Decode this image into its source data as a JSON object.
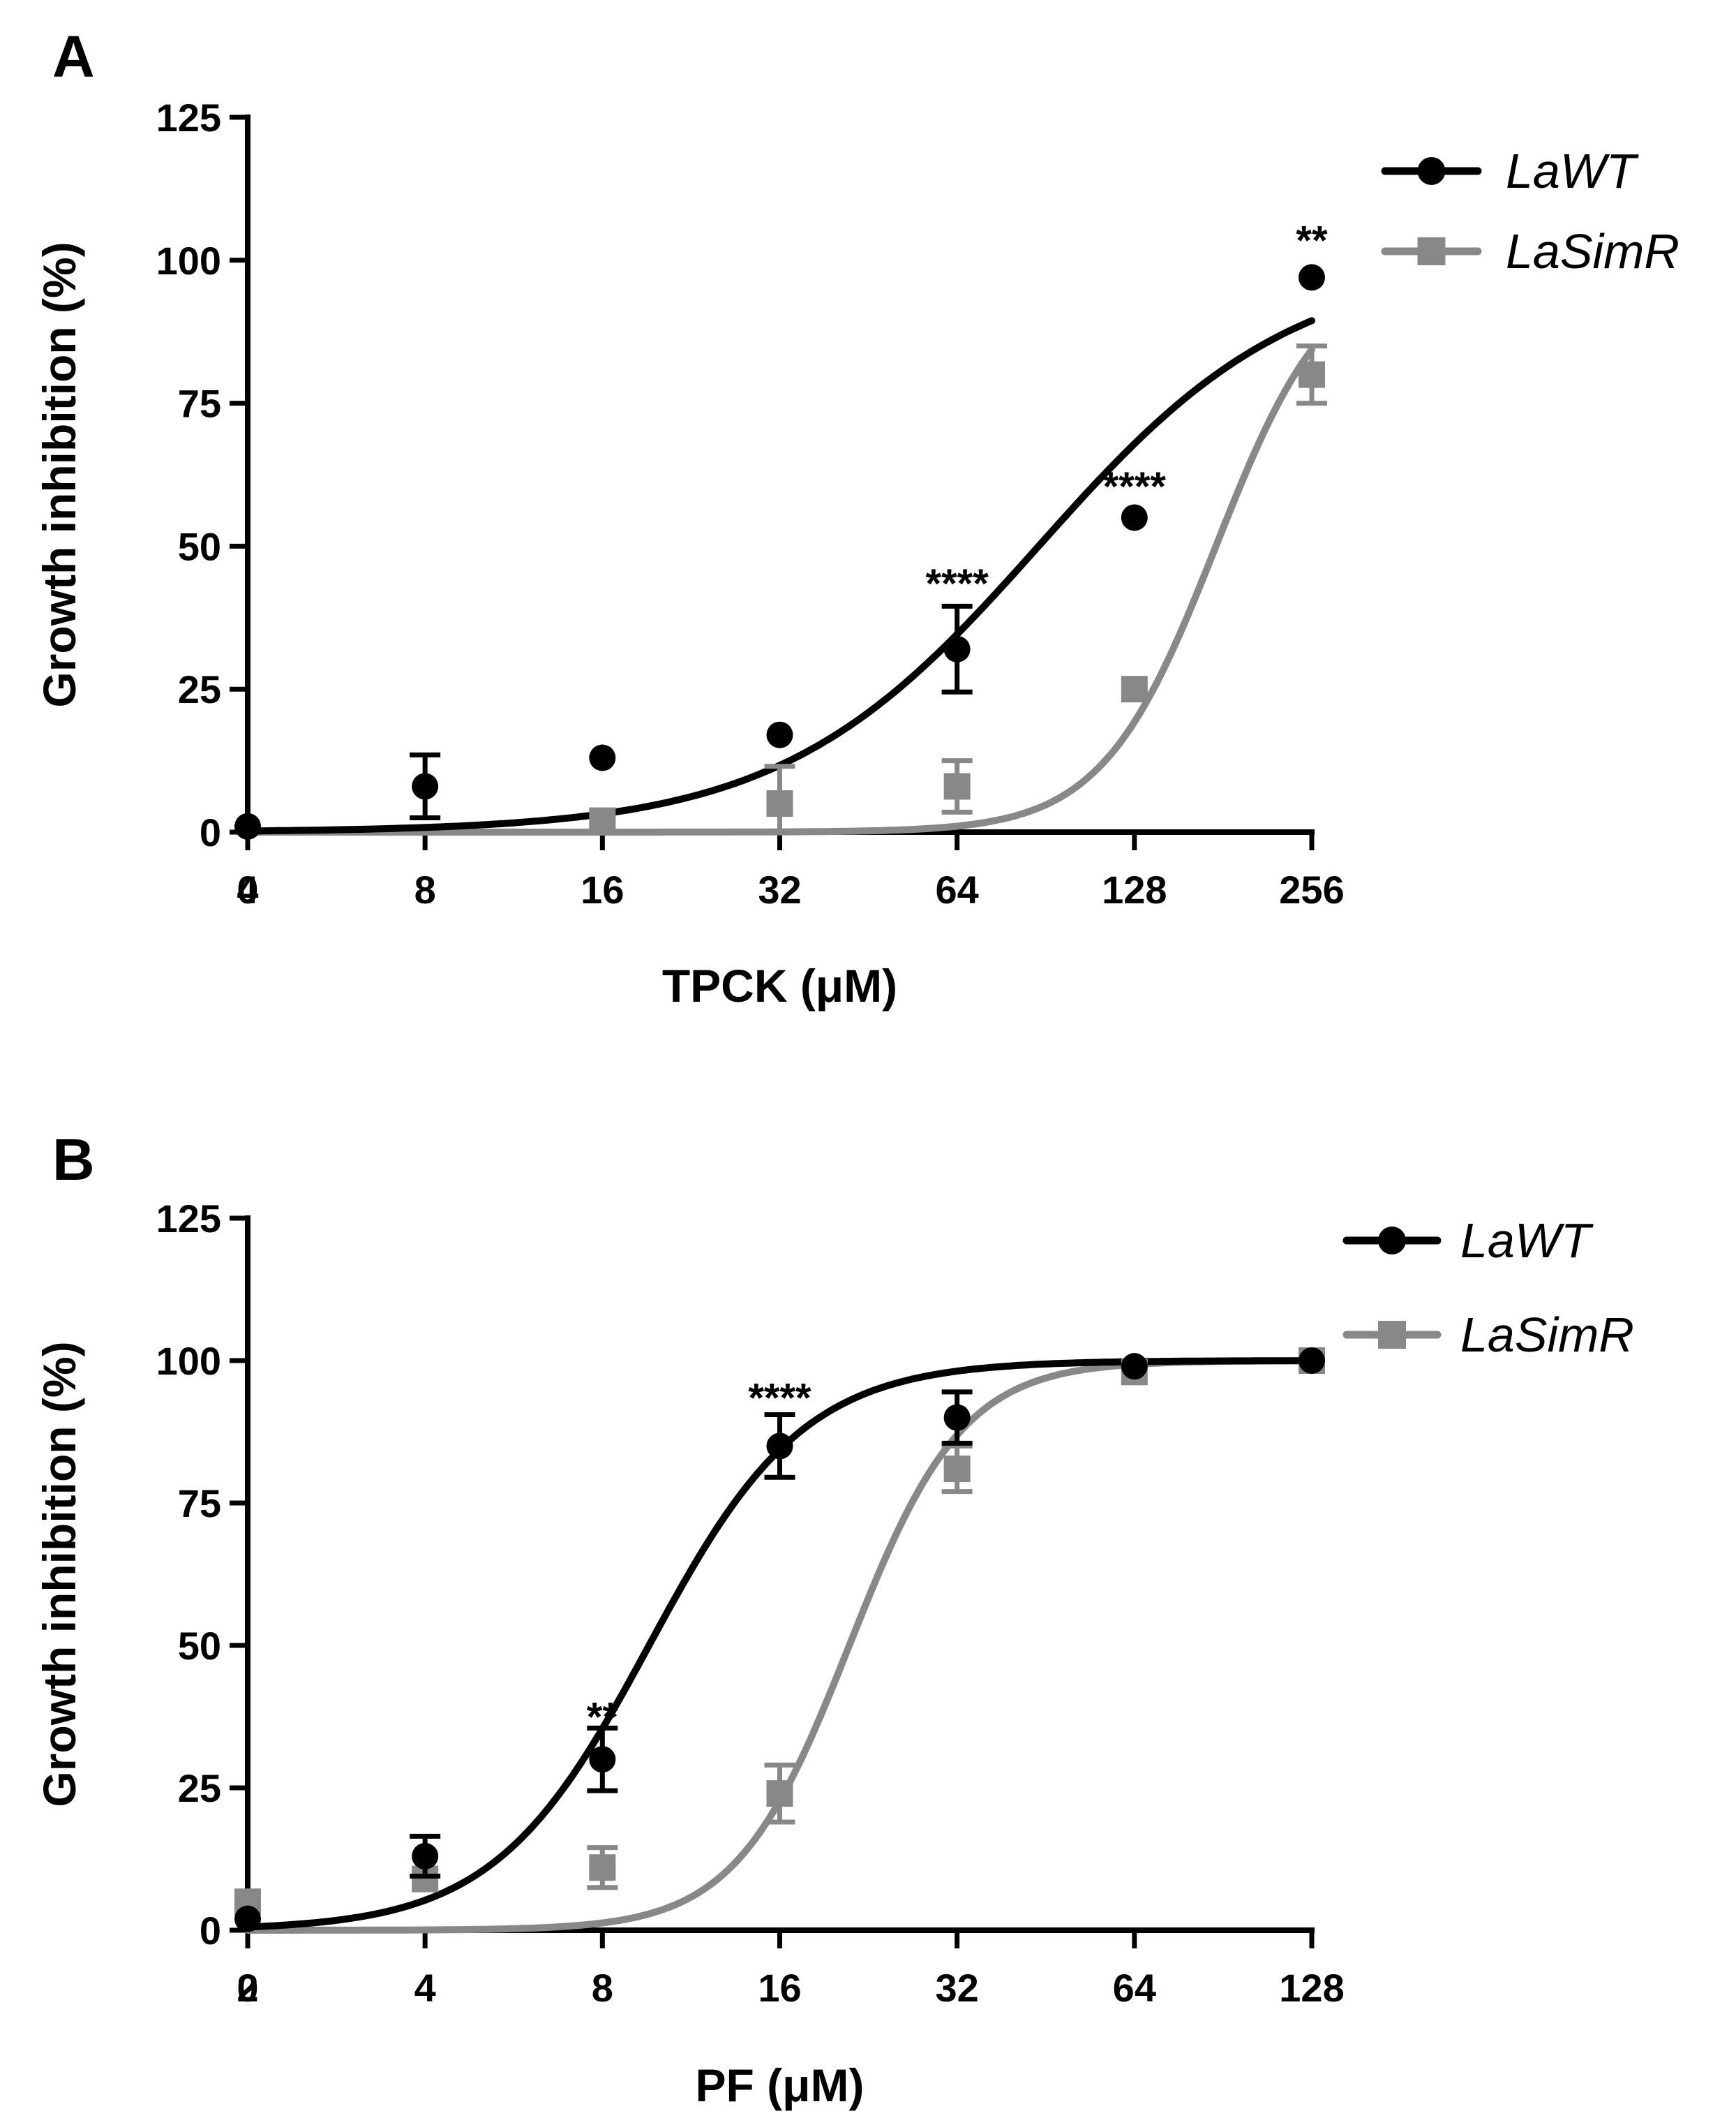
{
  "chart_data": [
    {
      "panel": "A",
      "type": "scatter",
      "xlabel": "TPCK (μM)",
      "ylabel": "Growth inhibition (%)",
      "x_scale": "log2",
      "x_ticks": [
        "0",
        "4",
        "8",
        "16",
        "32",
        "64",
        "128",
        "256"
      ],
      "y_ticks": [
        "0",
        "25",
        "50",
        "75",
        "100",
        "125"
      ],
      "ylim": [
        0,
        125
      ],
      "legend": {
        "placement": "top-right"
      },
      "series": [
        {
          "name": "LaWT",
          "color": "#000000",
          "marker": "circle",
          "x": [
            4,
            8,
            16,
            32,
            64,
            128,
            256
          ],
          "y": [
            1,
            8,
            13,
            17,
            32,
            55,
            97
          ],
          "error": [
            0,
            5.5,
            0,
            0,
            7.5,
            0,
            0
          ],
          "fit": {
            "ec50": 88,
            "hill": 2.0,
            "bottom": 0,
            "top": 100
          }
        },
        {
          "name": "LaSimR",
          "color": "#888888",
          "marker": "square",
          "x": [
            16,
            32,
            64,
            128,
            256
          ],
          "y": [
            2,
            5,
            8,
            25,
            80
          ],
          "error": [
            0,
            6.5,
            4.5,
            0,
            5
          ],
          "fit": {
            "ec50": 176,
            "hill": 4.5,
            "bottom": 0,
            "top": 100
          }
        }
      ],
      "annotations": [
        {
          "text": "****",
          "x": 64,
          "y": 41
        },
        {
          "text": "****",
          "x": 128,
          "y": 58
        },
        {
          "text": "**",
          "x": 256,
          "y": 101
        }
      ]
    },
    {
      "panel": "B",
      "type": "scatter",
      "xlabel": "PF (μM)",
      "ylabel": "Growth inhibition (%)",
      "x_scale": "log2",
      "x_ticks": [
        "0",
        "2",
        "4",
        "8",
        "16",
        "32",
        "64",
        "128"
      ],
      "y_ticks": [
        "0",
        "25",
        "50",
        "75",
        "100",
        "125"
      ],
      "ylim": [
        0,
        125
      ],
      "legend": {
        "placement": "top-right"
      },
      "series": [
        {
          "name": "LaWT",
          "color": "#000000",
          "marker": "circle",
          "x": [
            2,
            4,
            8,
            16,
            32,
            64,
            128
          ],
          "y": [
            2,
            13,
            30,
            85,
            90,
            99,
            100
          ],
          "error": [
            0,
            3.5,
            5.5,
            5.5,
            4.5,
            0,
            0
          ],
          "fit": {
            "ec50": 9.6,
            "hill": 3.3,
            "bottom": 0,
            "top": 100
          }
        },
        {
          "name": "LaSimR",
          "color": "#888888",
          "marker": "square",
          "x": [
            2,
            4,
            8,
            16,
            32,
            64,
            128
          ],
          "y": [
            5,
            9,
            11,
            24,
            81,
            98,
            100
          ],
          "error": [
            0,
            0,
            3.5,
            5,
            4,
            0,
            0
          ],
          "fit": {
            "ec50": 21,
            "hill": 4.5,
            "bottom": 0,
            "top": 100
          }
        }
      ],
      "annotations": [
        {
          "text": "**",
          "x": 8,
          "y": 35
        },
        {
          "text": "****",
          "x": 16,
          "y": 91
        }
      ]
    }
  ]
}
